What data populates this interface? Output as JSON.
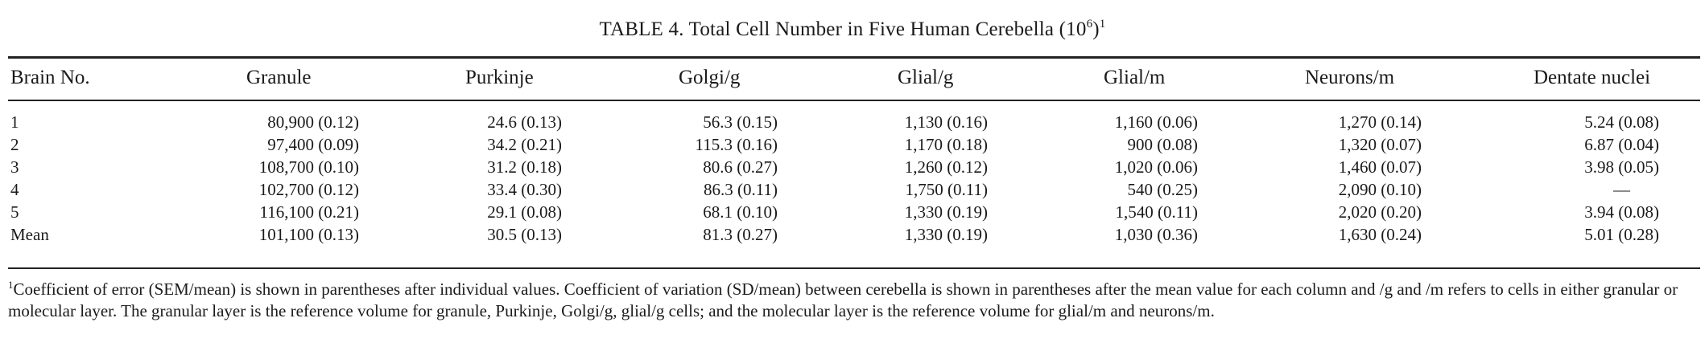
{
  "table": {
    "caption_prefix": "TABLE 4.  Total Cell Number in Five Human Cerebella (10",
    "caption_exp": "6",
    "caption_suffix": ")",
    "caption_mark": "1",
    "columns": [
      "Brain No.",
      "Granule",
      "Purkinje",
      "Golgi/g",
      "Glial/g",
      "Glial/m",
      "Neurons/m",
      "Dentate nuclei"
    ],
    "rows": [
      {
        "label": "1",
        "cells": [
          "80,900 (0.12)",
          "24.6 (0.13)",
          "56.3 (0.15)",
          "1,130 (0.16)",
          "1,160 (0.06)",
          "1,270 (0.14)",
          "5.24 (0.08)"
        ]
      },
      {
        "label": "2",
        "cells": [
          "97,400 (0.09)",
          "34.2 (0.21)",
          "115.3 (0.16)",
          "1,170 (0.18)",
          "900 (0.08)",
          "1,320 (0.07)",
          "6.87 (0.04)"
        ]
      },
      {
        "label": "3",
        "cells": [
          "108,700 (0.10)",
          "31.2 (0.18)",
          "80.6 (0.27)",
          "1,260 (0.12)",
          "1,020 (0.06)",
          "1,460 (0.07)",
          "3.98 (0.05)"
        ]
      },
      {
        "label": "4",
        "cells": [
          "102,700 (0.12)",
          "33.4 (0.30)",
          "86.3 (0.11)",
          "1,750 (0.11)",
          "540 (0.25)",
          "2,090 (0.10)",
          "—"
        ]
      },
      {
        "label": "5",
        "cells": [
          "116,100 (0.21)",
          "29.1 (0.08)",
          "68.1 (0.10)",
          "1,330 (0.19)",
          "1,540 (0.11)",
          "2,020 (0.20)",
          "3.94 (0.08)"
        ]
      },
      {
        "label": "Mean",
        "cells": [
          "101,100 (0.13)",
          "30.5 (0.13)",
          "81.3 (0.27)",
          "1,330 (0.19)",
          "1,030 (0.36)",
          "1,630 (0.24)",
          "5.01 (0.28)"
        ]
      }
    ],
    "footnote_mark": "1",
    "footnote": "Coefficient of error (SEM/mean) is shown in parentheses after individual values. Coefficient of variation (SD/mean) between cerebella is shown in parentheses after the mean value for each column and /g and /m refers to cells in either granular or molecular layer. The granular layer is the reference volume for granule, Purkinje, Golgi/g, glial/g cells; and the molecular layer is the reference volume for glial/m and neurons/m."
  }
}
